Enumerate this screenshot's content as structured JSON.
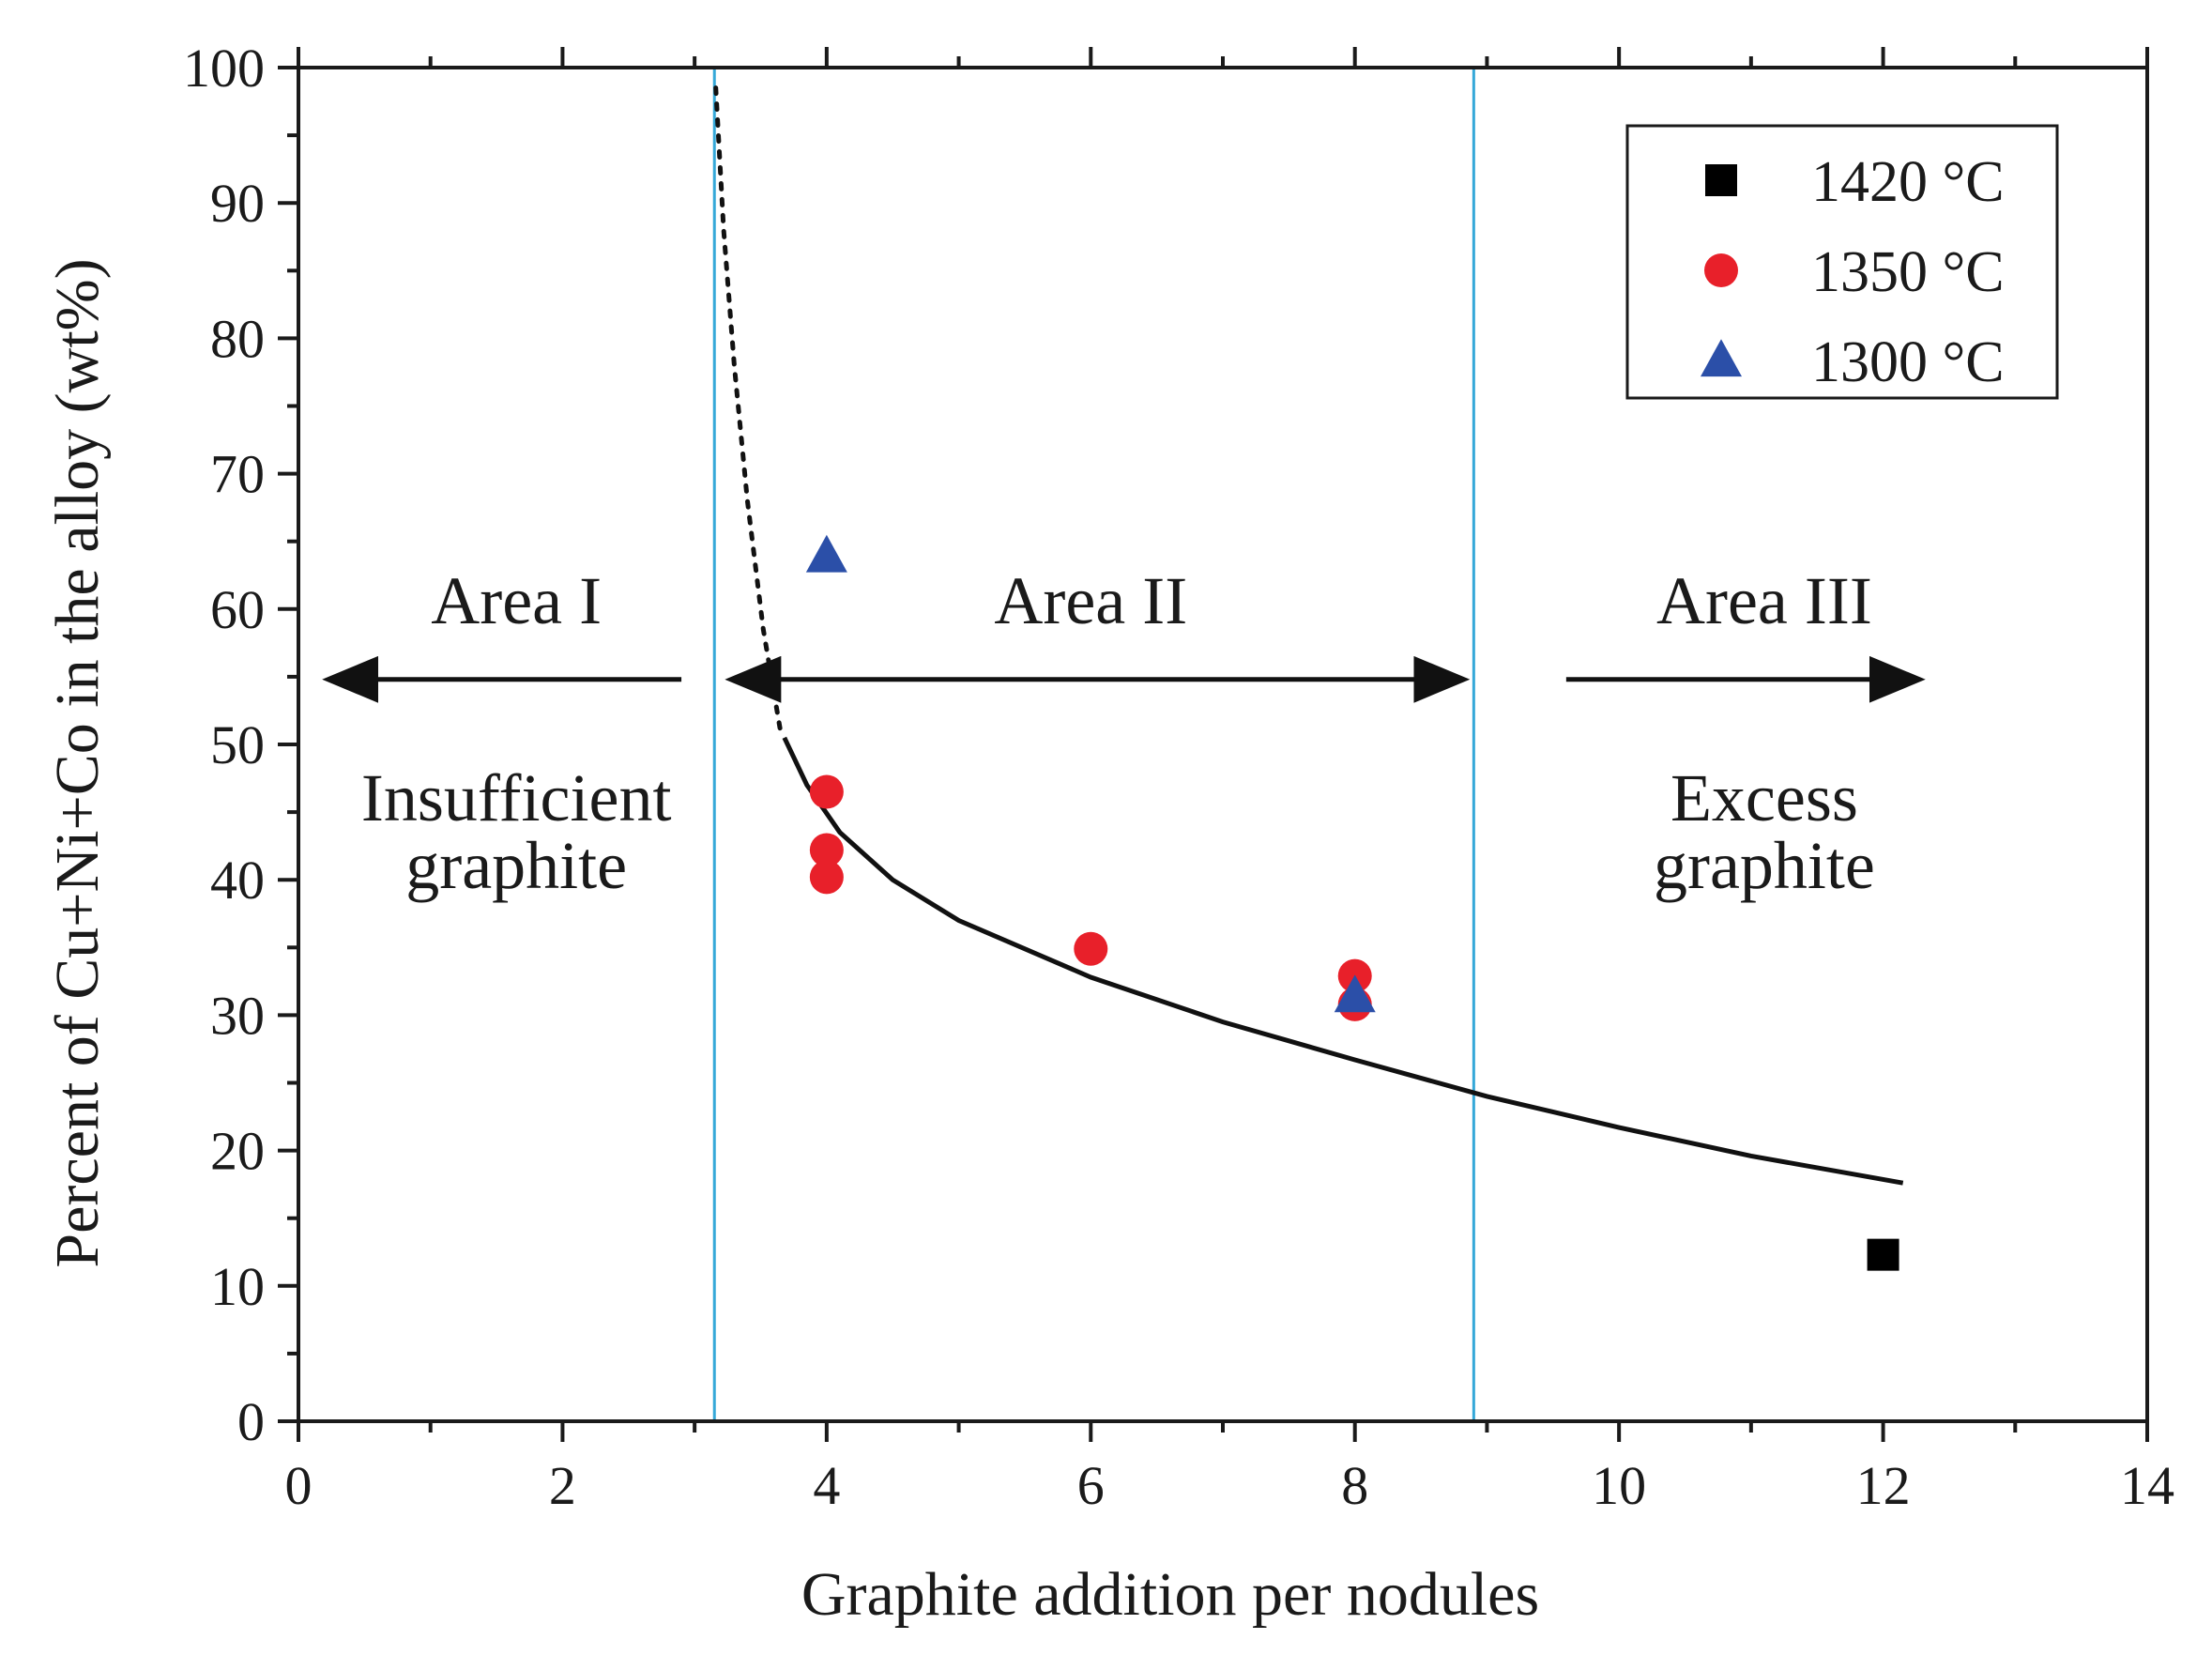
{
  "chart_data": {
    "type": "scatter",
    "title": "",
    "xlabel": "Graphite addition per nodules",
    "ylabel": "Percent of Cu+Ni+Co in the alloy (wt%)",
    "xlim": [
      0,
      14
    ],
    "ylim": [
      0,
      100
    ],
    "x_ticks": [
      0,
      2,
      4,
      6,
      8,
      10,
      12,
      14
    ],
    "x_tick_labels": [
      "0",
      "2",
      "4",
      "6",
      "8",
      "10",
      "12",
      "14"
    ],
    "y_ticks": [
      0,
      10,
      20,
      30,
      40,
      50,
      60,
      70,
      80,
      90,
      100
    ],
    "y_tick_labels": [
      "0",
      "10",
      "20",
      "30",
      "40",
      "50",
      "60",
      "70",
      "80",
      "90",
      "100"
    ],
    "grid": false,
    "legend_position": "top-right",
    "series": [
      {
        "name": "1420 °C",
        "marker": "square",
        "color": "#000000",
        "points": [
          {
            "x": 12,
            "y": 12.3
          }
        ]
      },
      {
        "name": "1350 °C",
        "marker": "circle",
        "color": "#e8202a",
        "points": [
          {
            "x": 4,
            "y": 46.5
          },
          {
            "x": 4,
            "y": 42.2
          },
          {
            "x": 4,
            "y": 40.2
          },
          {
            "x": 6,
            "y": 34.9
          },
          {
            "x": 8,
            "y": 32.9
          },
          {
            "x": 8,
            "y": 30.8
          }
        ]
      },
      {
        "name": "1300 °C",
        "marker": "triangle",
        "color": "#2b4fa8",
        "points": [
          {
            "x": 4,
            "y": 63.9
          },
          {
            "x": 8,
            "y": 31.4
          }
        ]
      }
    ],
    "fit_curve": {
      "description": "solid fitted curve with dotted extrapolation",
      "color": "#111111",
      "solid": [
        {
          "x": 3.68,
          "y": 50.5
        },
        {
          "x": 3.85,
          "y": 47.0
        },
        {
          "x": 4.1,
          "y": 43.5
        },
        {
          "x": 4.5,
          "y": 40.0
        },
        {
          "x": 5.0,
          "y": 37.0
        },
        {
          "x": 6.0,
          "y": 32.8
        },
        {
          "x": 7.0,
          "y": 29.5
        },
        {
          "x": 8.0,
          "y": 26.7
        },
        {
          "x": 9.0,
          "y": 24.0
        },
        {
          "x": 10.0,
          "y": 21.7
        },
        {
          "x": 11.0,
          "y": 19.6
        },
        {
          "x": 12.15,
          "y": 17.6
        }
      ],
      "dotted": [
        {
          "x": 3.16,
          "y": 98.5
        },
        {
          "x": 3.22,
          "y": 88.0
        },
        {
          "x": 3.3,
          "y": 78.0
        },
        {
          "x": 3.4,
          "y": 68.0
        },
        {
          "x": 3.52,
          "y": 58.5
        },
        {
          "x": 3.65,
          "y": 51.0
        }
      ]
    },
    "vertical_lines": [
      {
        "x": 3.15,
        "color": "#35a8d8"
      },
      {
        "x": 8.9,
        "color": "#35a8d8"
      }
    ],
    "regions": [
      {
        "label": "Area I",
        "description": "Insufficient\ngraphite",
        "x_center": 1.65,
        "arrow": {
          "from": 2.9,
          "to": 0.25,
          "y": 54.8,
          "double": false
        }
      },
      {
        "label": "Area II",
        "description": "",
        "x_center": 6.0,
        "arrow": {
          "from": 3.3,
          "to": 8.8,
          "y": 54.8,
          "double": true
        }
      },
      {
        "label": "Area III",
        "description": "Excess\ngraphite",
        "x_center": 11.1,
        "arrow": {
          "from": 9.6,
          "to": 12.25,
          "y": 54.8,
          "double": false
        }
      }
    ]
  }
}
